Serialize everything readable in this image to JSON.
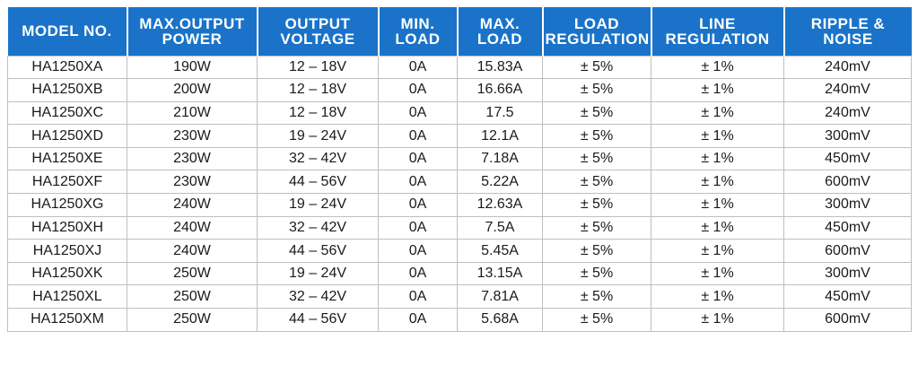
{
  "columns": [
    {
      "line1": "MODEL NO.",
      "line2": ""
    },
    {
      "line1": "MAX.OUTPUT",
      "line2": "POWER"
    },
    {
      "line1": "OUTPUT",
      "line2": "VOLTAGE"
    },
    {
      "line1": "MIN.",
      "line2": "LOAD"
    },
    {
      "line1": "MAX.",
      "line2": "LOAD"
    },
    {
      "line1": "LOAD",
      "line2": "REGULATION"
    },
    {
      "line1": "LINE",
      "line2": "REGULATION"
    },
    {
      "line1": "RIPPLE &",
      "line2": "NOISE"
    }
  ],
  "rows": [
    [
      "HA1250XA",
      "190W",
      "12 – 18V",
      "0A",
      "15.83A",
      "± 5%",
      "± 1%",
      "240mV"
    ],
    [
      "HA1250XB",
      "200W",
      "12 – 18V",
      "0A",
      "16.66A",
      "± 5%",
      "± 1%",
      "240mV"
    ],
    [
      "HA1250XC",
      "210W",
      "12 – 18V",
      "0A",
      "17.5",
      "± 5%",
      "± 1%",
      "240mV"
    ],
    [
      "HA1250XD",
      "230W",
      "19 – 24V",
      "0A",
      "12.1A",
      "± 5%",
      "± 1%",
      "300mV"
    ],
    [
      "HA1250XE",
      "230W",
      "32 – 42V",
      "0A",
      "7.18A",
      "± 5%",
      "± 1%",
      "450mV"
    ],
    [
      "HA1250XF",
      "230W",
      "44 – 56V",
      "0A",
      "5.22A",
      "± 5%",
      "± 1%",
      "600mV"
    ],
    [
      "HA1250XG",
      "240W",
      "19 – 24V",
      "0A",
      "12.63A",
      "± 5%",
      "± 1%",
      "300mV"
    ],
    [
      "HA1250XH",
      "240W",
      "32 – 42V",
      "0A",
      "7.5A",
      "± 5%",
      "± 1%",
      "450mV"
    ],
    [
      "HA1250XJ",
      "240W",
      "44 – 56V",
      "0A",
      "5.45A",
      "± 5%",
      "± 1%",
      "600mV"
    ],
    [
      "HA1250XK",
      "250W",
      "19 – 24V",
      "0A",
      "13.15A",
      "± 5%",
      "± 1%",
      "300mV"
    ],
    [
      "HA1250XL",
      "250W",
      "32 – 42V",
      "0A",
      "7.81A",
      "± 5%",
      "± 1%",
      "450mV"
    ],
    [
      "HA1250XM",
      "250W",
      "44 – 56V",
      "0A",
      "5.68A",
      "± 5%",
      "± 1%",
      "600mV"
    ]
  ],
  "colors": {
    "header_bg": "#1a73c8",
    "header_text": "#ffffff",
    "grid": "#bfbfbf",
    "cell_text": "#1a1a1a"
  }
}
